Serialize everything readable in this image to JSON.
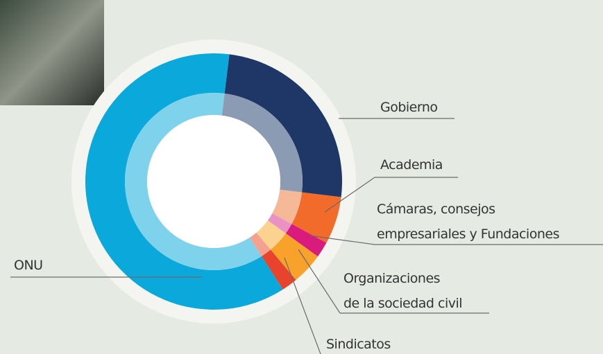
{
  "chart_data": {
    "type": "donut",
    "categories": [
      "Gobierno",
      "Academia",
      "Cámaras, consejos\nempresariales y Fundaciones",
      "Organizaciones\nde la sociedad civil",
      "Sindicatos",
      "ONU"
    ],
    "values": [
      25,
      6,
      2,
      4,
      2,
      61
    ],
    "colors": [
      "#1f3767",
      "#f26b2b",
      "#d81b7d",
      "#f9a22b",
      "#e8432d",
      "#0aa8db"
    ],
    "inner_colors": [
      "#8c9bb4",
      "#f6b997",
      "#ea92c5",
      "#fbd290",
      "#f4a28f",
      "#7fd2eb"
    ]
  }
}
